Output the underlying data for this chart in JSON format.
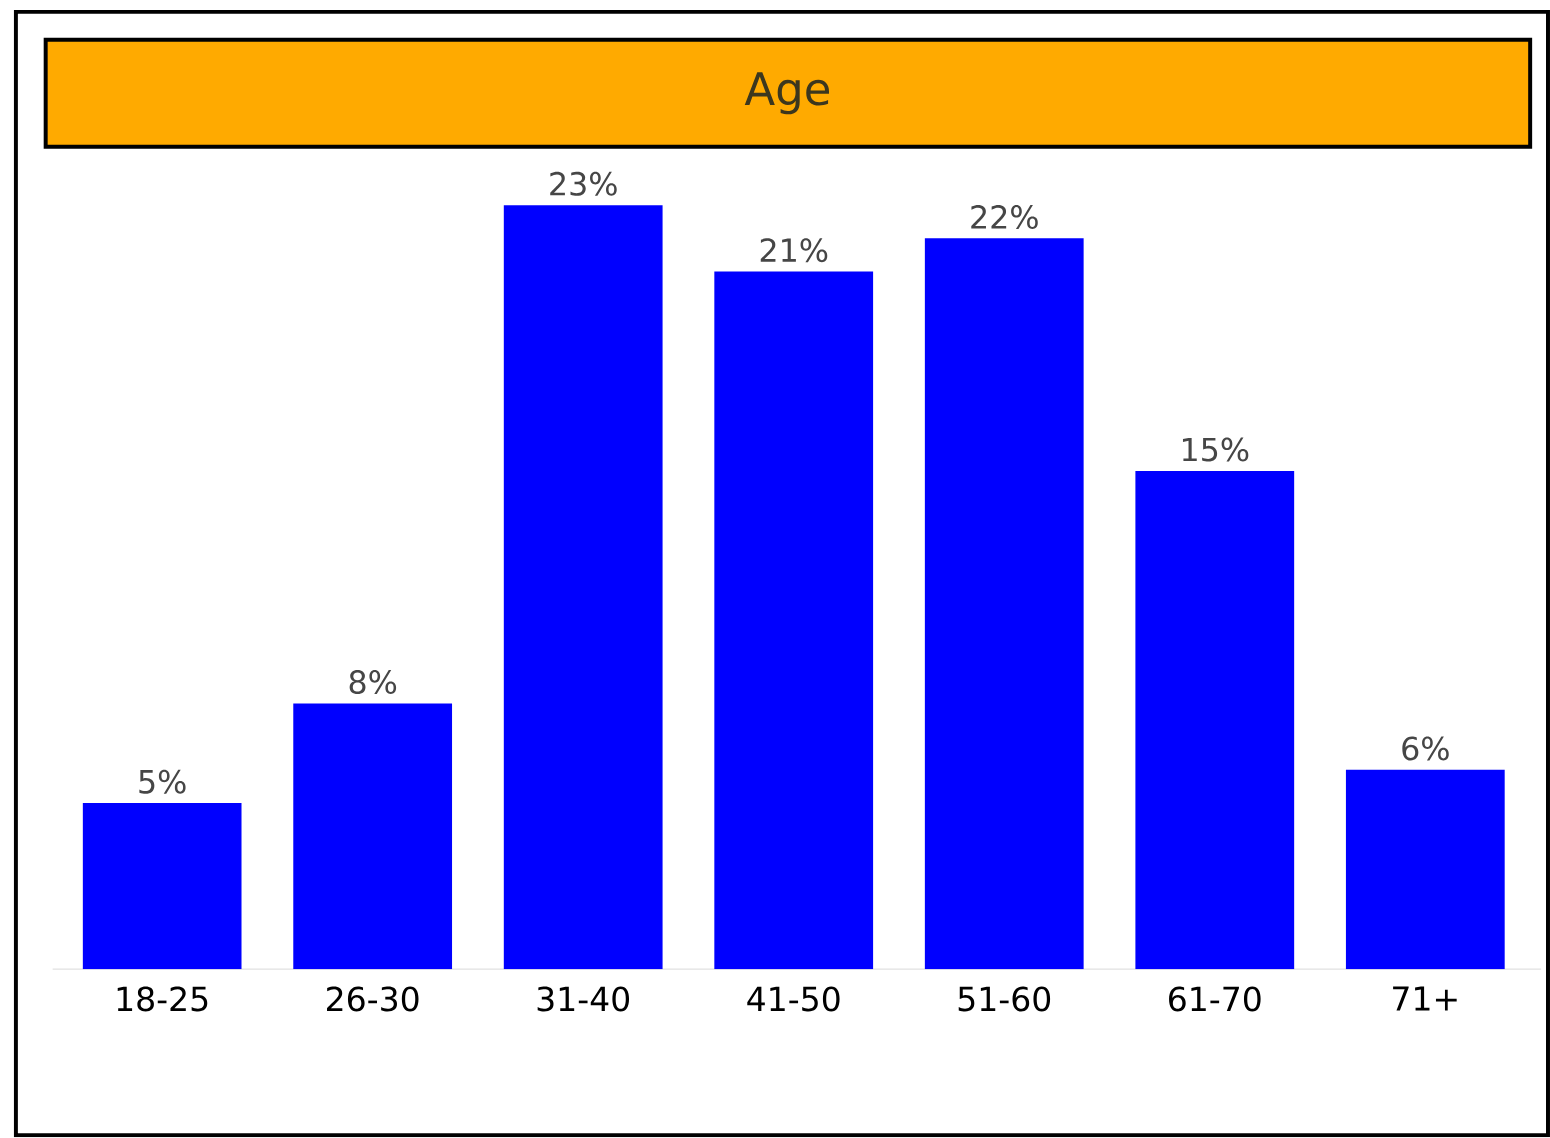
{
  "chart_data": {
    "type": "bar",
    "title": "Age",
    "categories": [
      "18-25",
      "26-30",
      "31-40",
      "41-50",
      "51-60",
      "61-70",
      "71+"
    ],
    "values": [
      5,
      8,
      23,
      21,
      22,
      15,
      6
    ],
    "value_labels": [
      "5%",
      "8%",
      "23%",
      "21%",
      "22%",
      "15%",
      "6%"
    ],
    "color": "#0000ff",
    "tick_labels": "x"
  }
}
